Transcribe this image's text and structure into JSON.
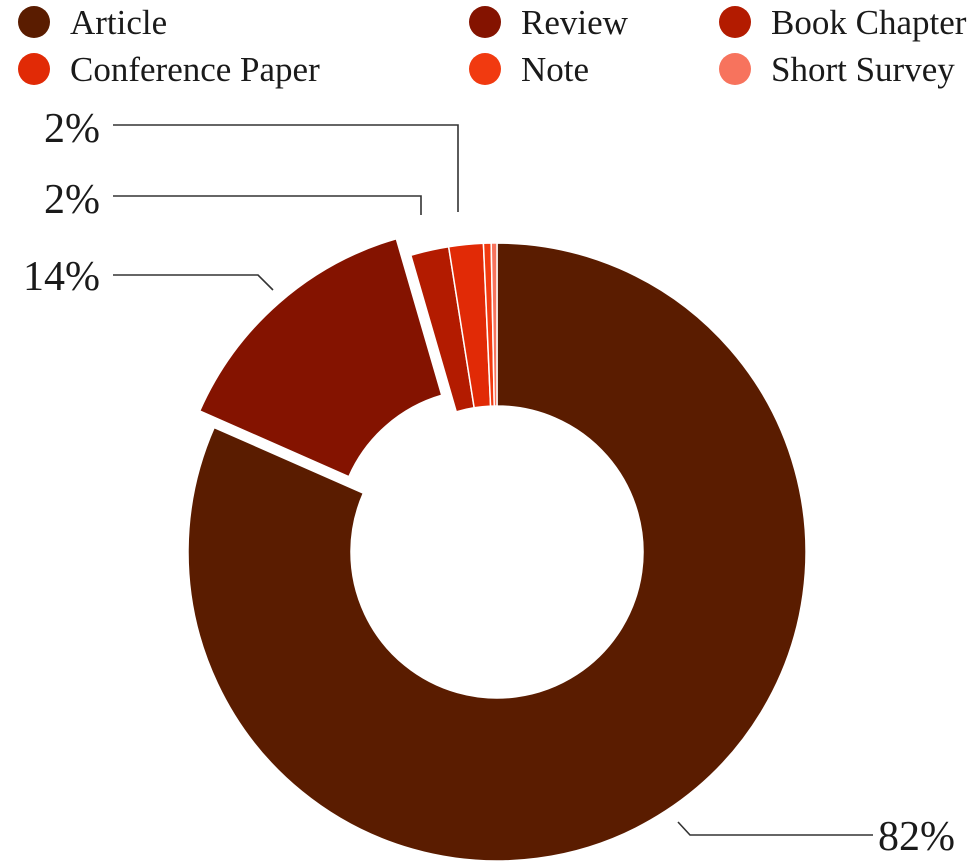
{
  "chart_data": {
    "type": "pie",
    "variant": "donut",
    "title": "",
    "legend_position": "top",
    "categories": [
      "Article",
      "Review",
      "Book Chapter",
      "Conference Paper",
      "Note",
      "Short Survey"
    ],
    "values": [
      81.6,
      13.9,
      2.0,
      1.8,
      0.4,
      0.3
    ],
    "colors": [
      "#5a1c00",
      "#841300",
      "#b31b00",
      "#e12a06",
      "#f13a10",
      "#f7735d"
    ],
    "data_labels": [
      "82%",
      "14%",
      "2%",
      "2%",
      "",
      ""
    ],
    "exploded": "Review"
  }
}
